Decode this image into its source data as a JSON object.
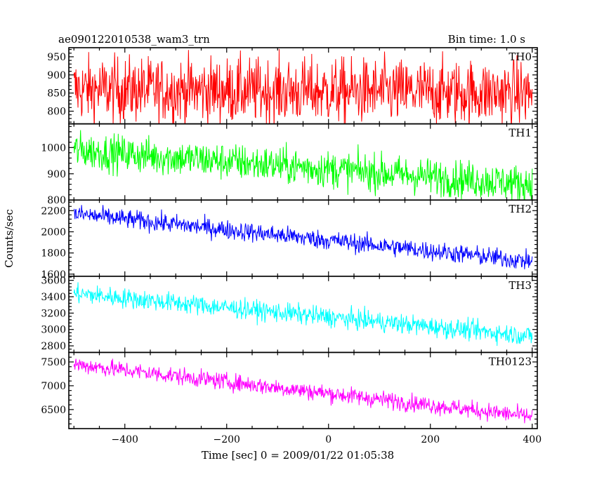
{
  "chart_data": {
    "type": "line",
    "title": "ae090122010538_wam3_trn",
    "subtitle": "Bin time: 1.0 s",
    "xlabel": "Time [sec] 0 = 2009/01/22 01:05:38",
    "ylabel": "Counts/sec",
    "xlim": [
      -510,
      410
    ],
    "x_ticks": [
      -400,
      -200,
      0,
      200,
      400
    ],
    "x_tick_labels": [
      "−400",
      "−200",
      "0",
      "200",
      "400"
    ],
    "x_start": -500,
    "x_end": 400,
    "grid": false,
    "panels": [
      {
        "name": "TH0",
        "color": "#ff0000",
        "ylim": [
          765,
          975
        ],
        "y_ticks": [
          800,
          850,
          900,
          950
        ],
        "trend_start": 860,
        "trend_end": 850,
        "noise": 45
      },
      {
        "name": "TH1",
        "color": "#00ff00",
        "ylim": [
          800,
          1090
        ],
        "y_ticks": [
          800,
          900,
          1000
        ],
        "trend_start": 990,
        "trend_end": 860,
        "noise": 35
      },
      {
        "name": "TH2",
        "color": "#0000ff",
        "ylim": [
          1580,
          2300
        ],
        "y_ticks": [
          1600,
          1800,
          2000,
          2200
        ],
        "trend_start": 2170,
        "trend_end": 1720,
        "noise": 45
      },
      {
        "name": "TH3",
        "color": "#00ffff",
        "ylim": [
          2720,
          3650
        ],
        "y_ticks": [
          2800,
          3000,
          3200,
          3400,
          3600
        ],
        "trend_start": 3440,
        "trend_end": 2920,
        "noise": 60
      },
      {
        "name": "TH0123",
        "color": "#ff00ff",
        "ylim": [
          6100,
          7700
        ],
        "y_ticks": [
          6500,
          7000,
          7500
        ],
        "trend_start": 7450,
        "trend_end": 6350,
        "noise": 90
      }
    ]
  }
}
